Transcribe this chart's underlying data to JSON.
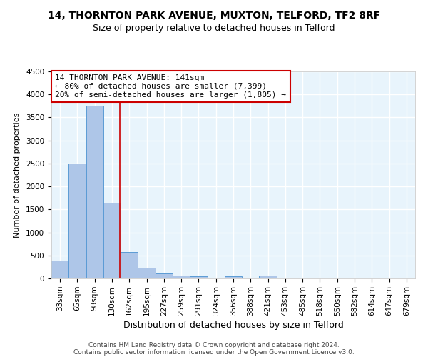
{
  "title": "14, THORNTON PARK AVENUE, MUXTON, TELFORD, TF2 8RF",
  "subtitle": "Size of property relative to detached houses in Telford",
  "xlabel": "Distribution of detached houses by size in Telford",
  "ylabel": "Number of detached properties",
  "categories": [
    "33sqm",
    "65sqm",
    "98sqm",
    "130sqm",
    "162sqm",
    "195sqm",
    "227sqm",
    "259sqm",
    "291sqm",
    "324sqm",
    "356sqm",
    "388sqm",
    "421sqm",
    "453sqm",
    "485sqm",
    "518sqm",
    "550sqm",
    "582sqm",
    "614sqm",
    "647sqm",
    "679sqm"
  ],
  "values": [
    390,
    2500,
    3750,
    1650,
    580,
    240,
    110,
    60,
    40,
    0,
    40,
    0,
    60,
    0,
    0,
    0,
    0,
    0,
    0,
    0,
    0
  ],
  "bar_color": "#aec6e8",
  "bar_edge_color": "#5b9bd5",
  "vline_color": "#cc0000",
  "vline_x": 3.45,
  "annotation_line1": "14 THORNTON PARK AVENUE: 141sqm",
  "annotation_line2": "← 80% of detached houses are smaller (7,399)",
  "annotation_line3": "20% of semi-detached houses are larger (1,805) →",
  "annotation_box_color": "white",
  "annotation_box_edge_color": "#cc0000",
  "ylim": [
    0,
    4500
  ],
  "yticks": [
    0,
    500,
    1000,
    1500,
    2000,
    2500,
    3000,
    3500,
    4000,
    4500
  ],
  "bg_color": "#e8f4fc",
  "grid_color": "white",
  "footer_line1": "Contains HM Land Registry data © Crown copyright and database right 2024.",
  "footer_line2": "Contains public sector information licensed under the Open Government Licence v3.0.",
  "title_fontsize": 10,
  "subtitle_fontsize": 9,
  "xlabel_fontsize": 9,
  "ylabel_fontsize": 8,
  "tick_fontsize": 7.5,
  "annotation_fontsize": 8,
  "footer_fontsize": 6.5
}
